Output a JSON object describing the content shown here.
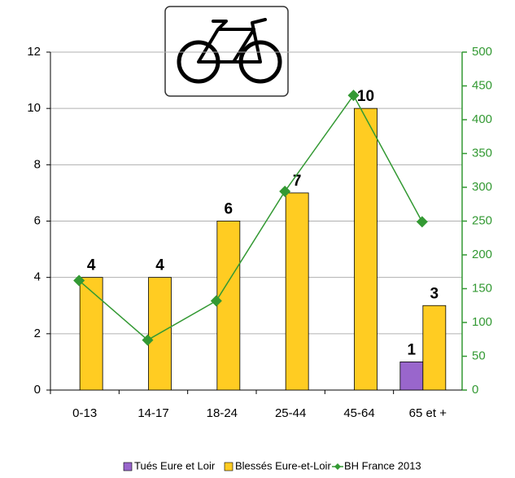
{
  "chart_data": {
    "type": "bar",
    "categories": [
      "0-13",
      "14-17",
      "18-24",
      "25-44",
      "45-64",
      "65 et +"
    ],
    "series": [
      {
        "name": "Tués Eure et Loir",
        "color": "#9966cc",
        "values": [
          null,
          null,
          null,
          null,
          null,
          1
        ]
      },
      {
        "name": "Blessés Eure-et-Loir",
        "color": "#ffcc22",
        "values": [
          4,
          4,
          6,
          7,
          10,
          3
        ]
      },
      {
        "name": "BH France 2013",
        "color": "#339933",
        "type": "line",
        "axis": "y2",
        "values": [
          162,
          74,
          132,
          294,
          436,
          249
        ]
      }
    ],
    "ylim": [
      0,
      12
    ],
    "yticks": [
      0,
      2,
      4,
      6,
      8,
      10,
      12
    ],
    "y2lim": [
      0,
      500
    ],
    "y2ticks": [
      0,
      50,
      100,
      150,
      200,
      250,
      300,
      350,
      400,
      450,
      500
    ],
    "grid": true,
    "legend": "bottom"
  }
}
